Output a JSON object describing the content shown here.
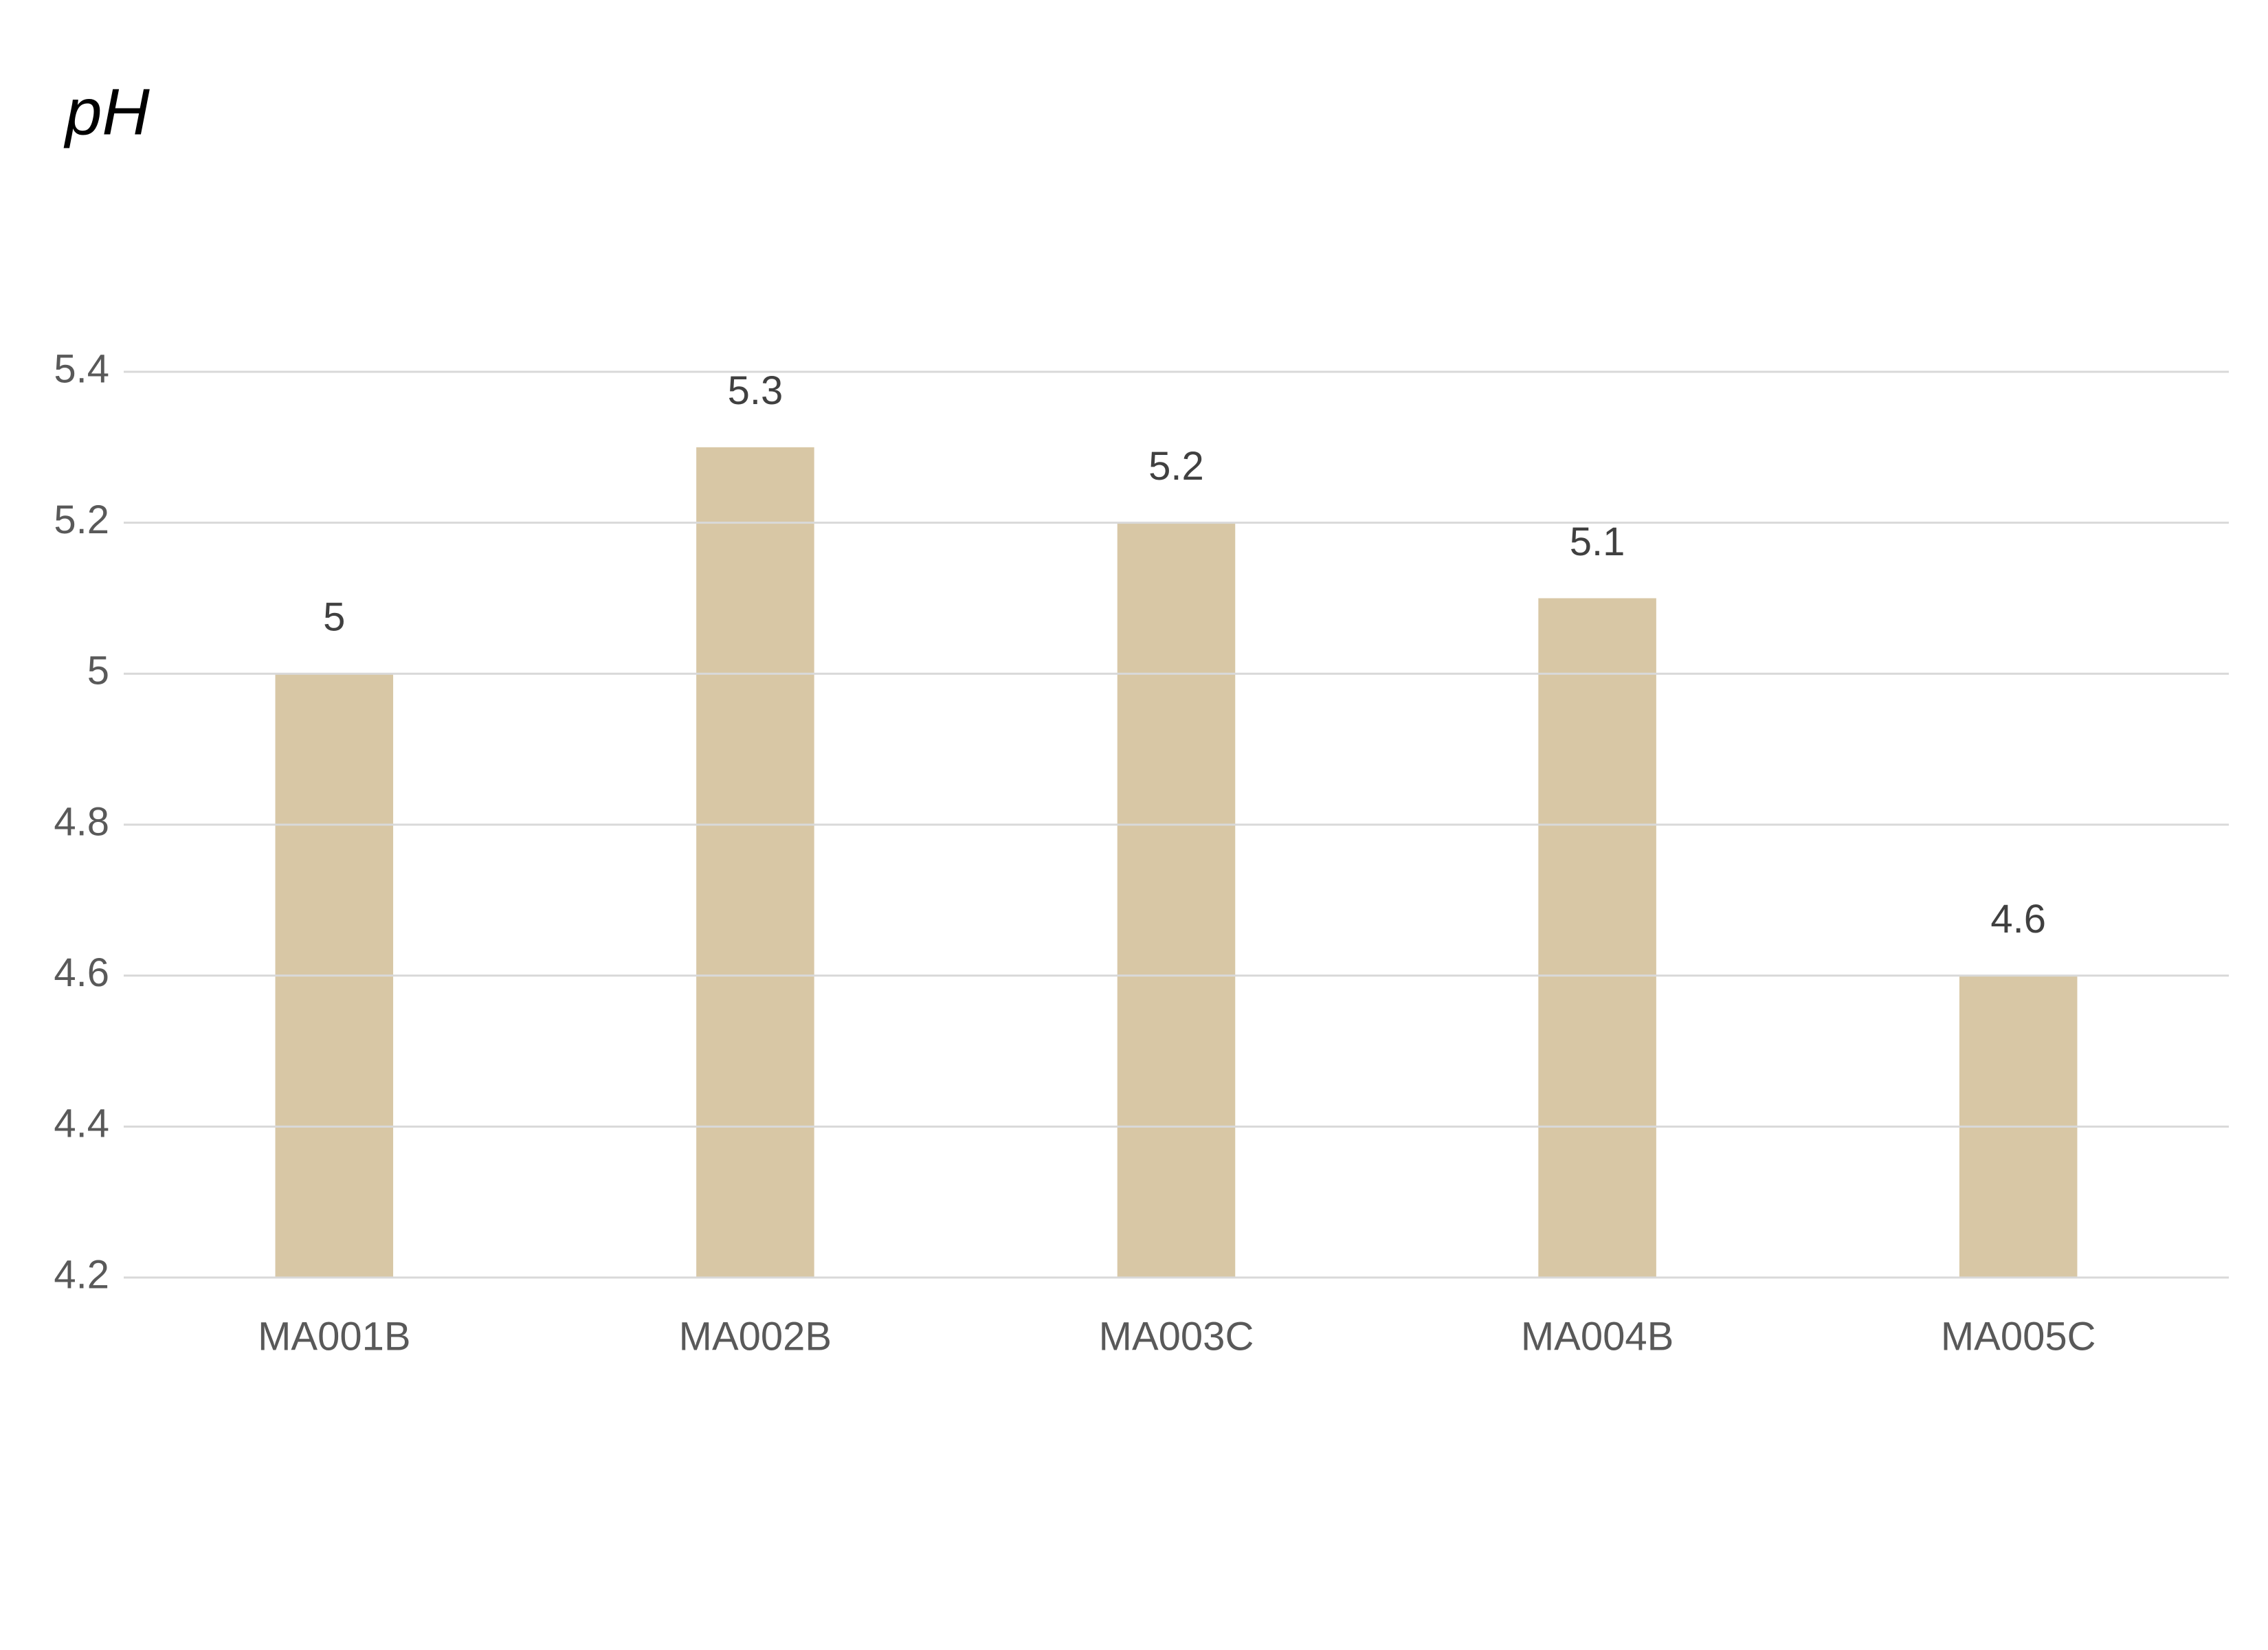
{
  "chart_data": {
    "type": "bar",
    "title": "pH",
    "categories": [
      "MA001B",
      "MA002B",
      "MA003C",
      "MA004B",
      "MA005C"
    ],
    "values": [
      5,
      5.3,
      5.2,
      5.1,
      4.6
    ],
    "color": "#d8c7a5",
    "ylim": [
      4.2,
      5.4
    ],
    "yticks": [
      4.2,
      4.4,
      4.6,
      4.8,
      5,
      5.2,
      5.4
    ],
    "grid": true
  }
}
